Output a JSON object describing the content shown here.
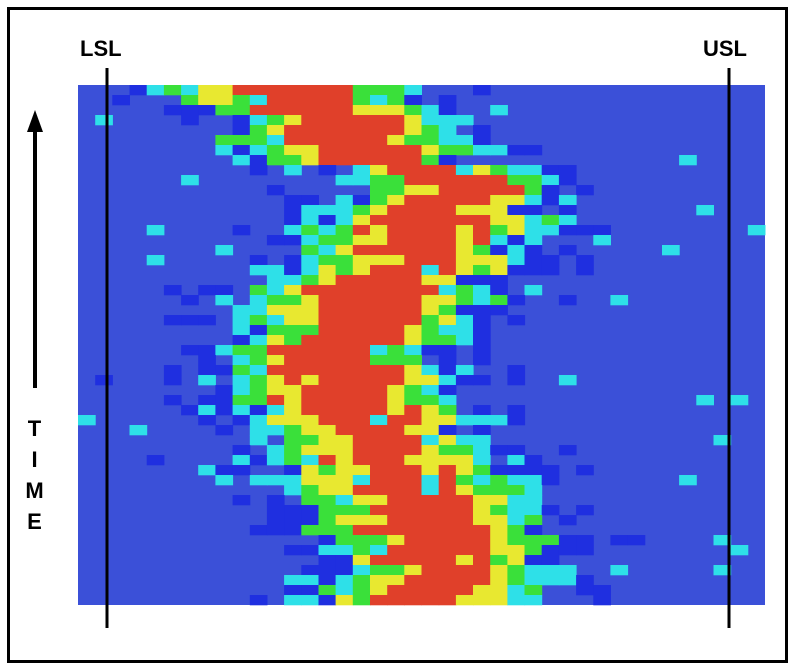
{
  "labels": {
    "lower_limit": "LSL",
    "upper_limit": "USL",
    "axis": "TIME"
  }
}
